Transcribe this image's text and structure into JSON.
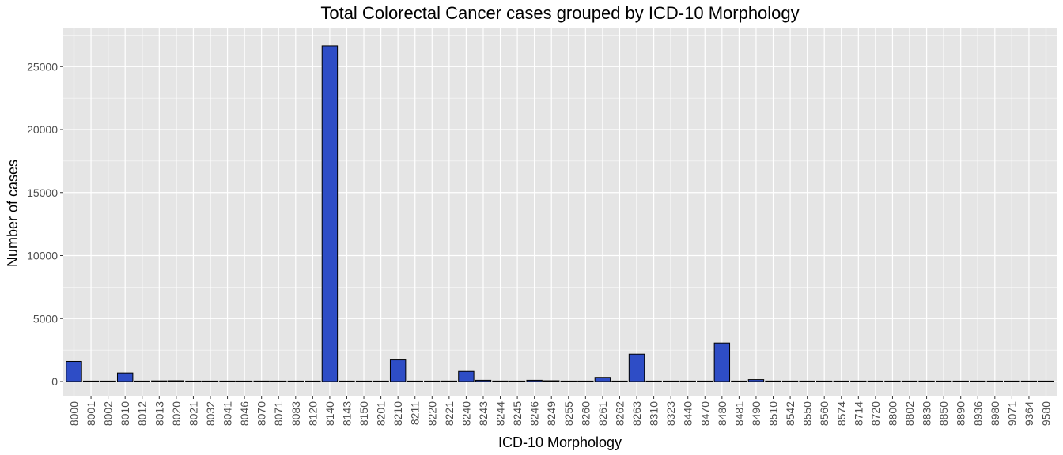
{
  "chart_data": {
    "type": "bar",
    "title": "Total Colorectal Cancer cases grouped by ICD-10 Morphology",
    "xlabel": "ICD-10 Morphology",
    "ylabel": "Number of cases",
    "categories": [
      "8000",
      "8001",
      "8002",
      "8010",
      "8012",
      "8013",
      "8020",
      "8021",
      "8032",
      "8041",
      "8046",
      "8070",
      "8071",
      "8083",
      "8120",
      "8140",
      "8143",
      "8150",
      "8201",
      "8210",
      "8211",
      "8220",
      "8221",
      "8240",
      "8243",
      "8244",
      "8245",
      "8246",
      "8249",
      "8255",
      "8260",
      "8261",
      "8262",
      "8263",
      "8310",
      "8323",
      "8440",
      "8470",
      "8480",
      "8481",
      "8490",
      "8510",
      "8542",
      "8550",
      "8560",
      "8574",
      "8714",
      "8720",
      "8800",
      "8802",
      "8830",
      "8850",
      "8890",
      "8936",
      "8980",
      "9071",
      "9364",
      "9580"
    ],
    "values": [
      1600,
      5,
      5,
      680,
      5,
      50,
      60,
      5,
      5,
      30,
      5,
      40,
      5,
      5,
      5,
      26650,
      5,
      5,
      5,
      1720,
      5,
      5,
      40,
      800,
      100,
      40,
      5,
      100,
      60,
      5,
      5,
      330,
      5,
      2180,
      5,
      5,
      5,
      5,
      3060,
      5,
      150,
      40,
      5,
      5,
      5,
      5,
      5,
      5,
      5,
      5,
      5,
      5,
      5,
      5,
      5,
      5,
      5,
      5
    ],
    "ylim": [
      0,
      28000
    ],
    "yticks": [
      0,
      5000,
      10000,
      15000,
      20000,
      25000
    ],
    "grid": true,
    "legend": "none",
    "bar_color": "#2e4dc6",
    "bar_outline": "#000000",
    "panel_background": "#e5e5e5",
    "grid_color": "#ffffff"
  }
}
